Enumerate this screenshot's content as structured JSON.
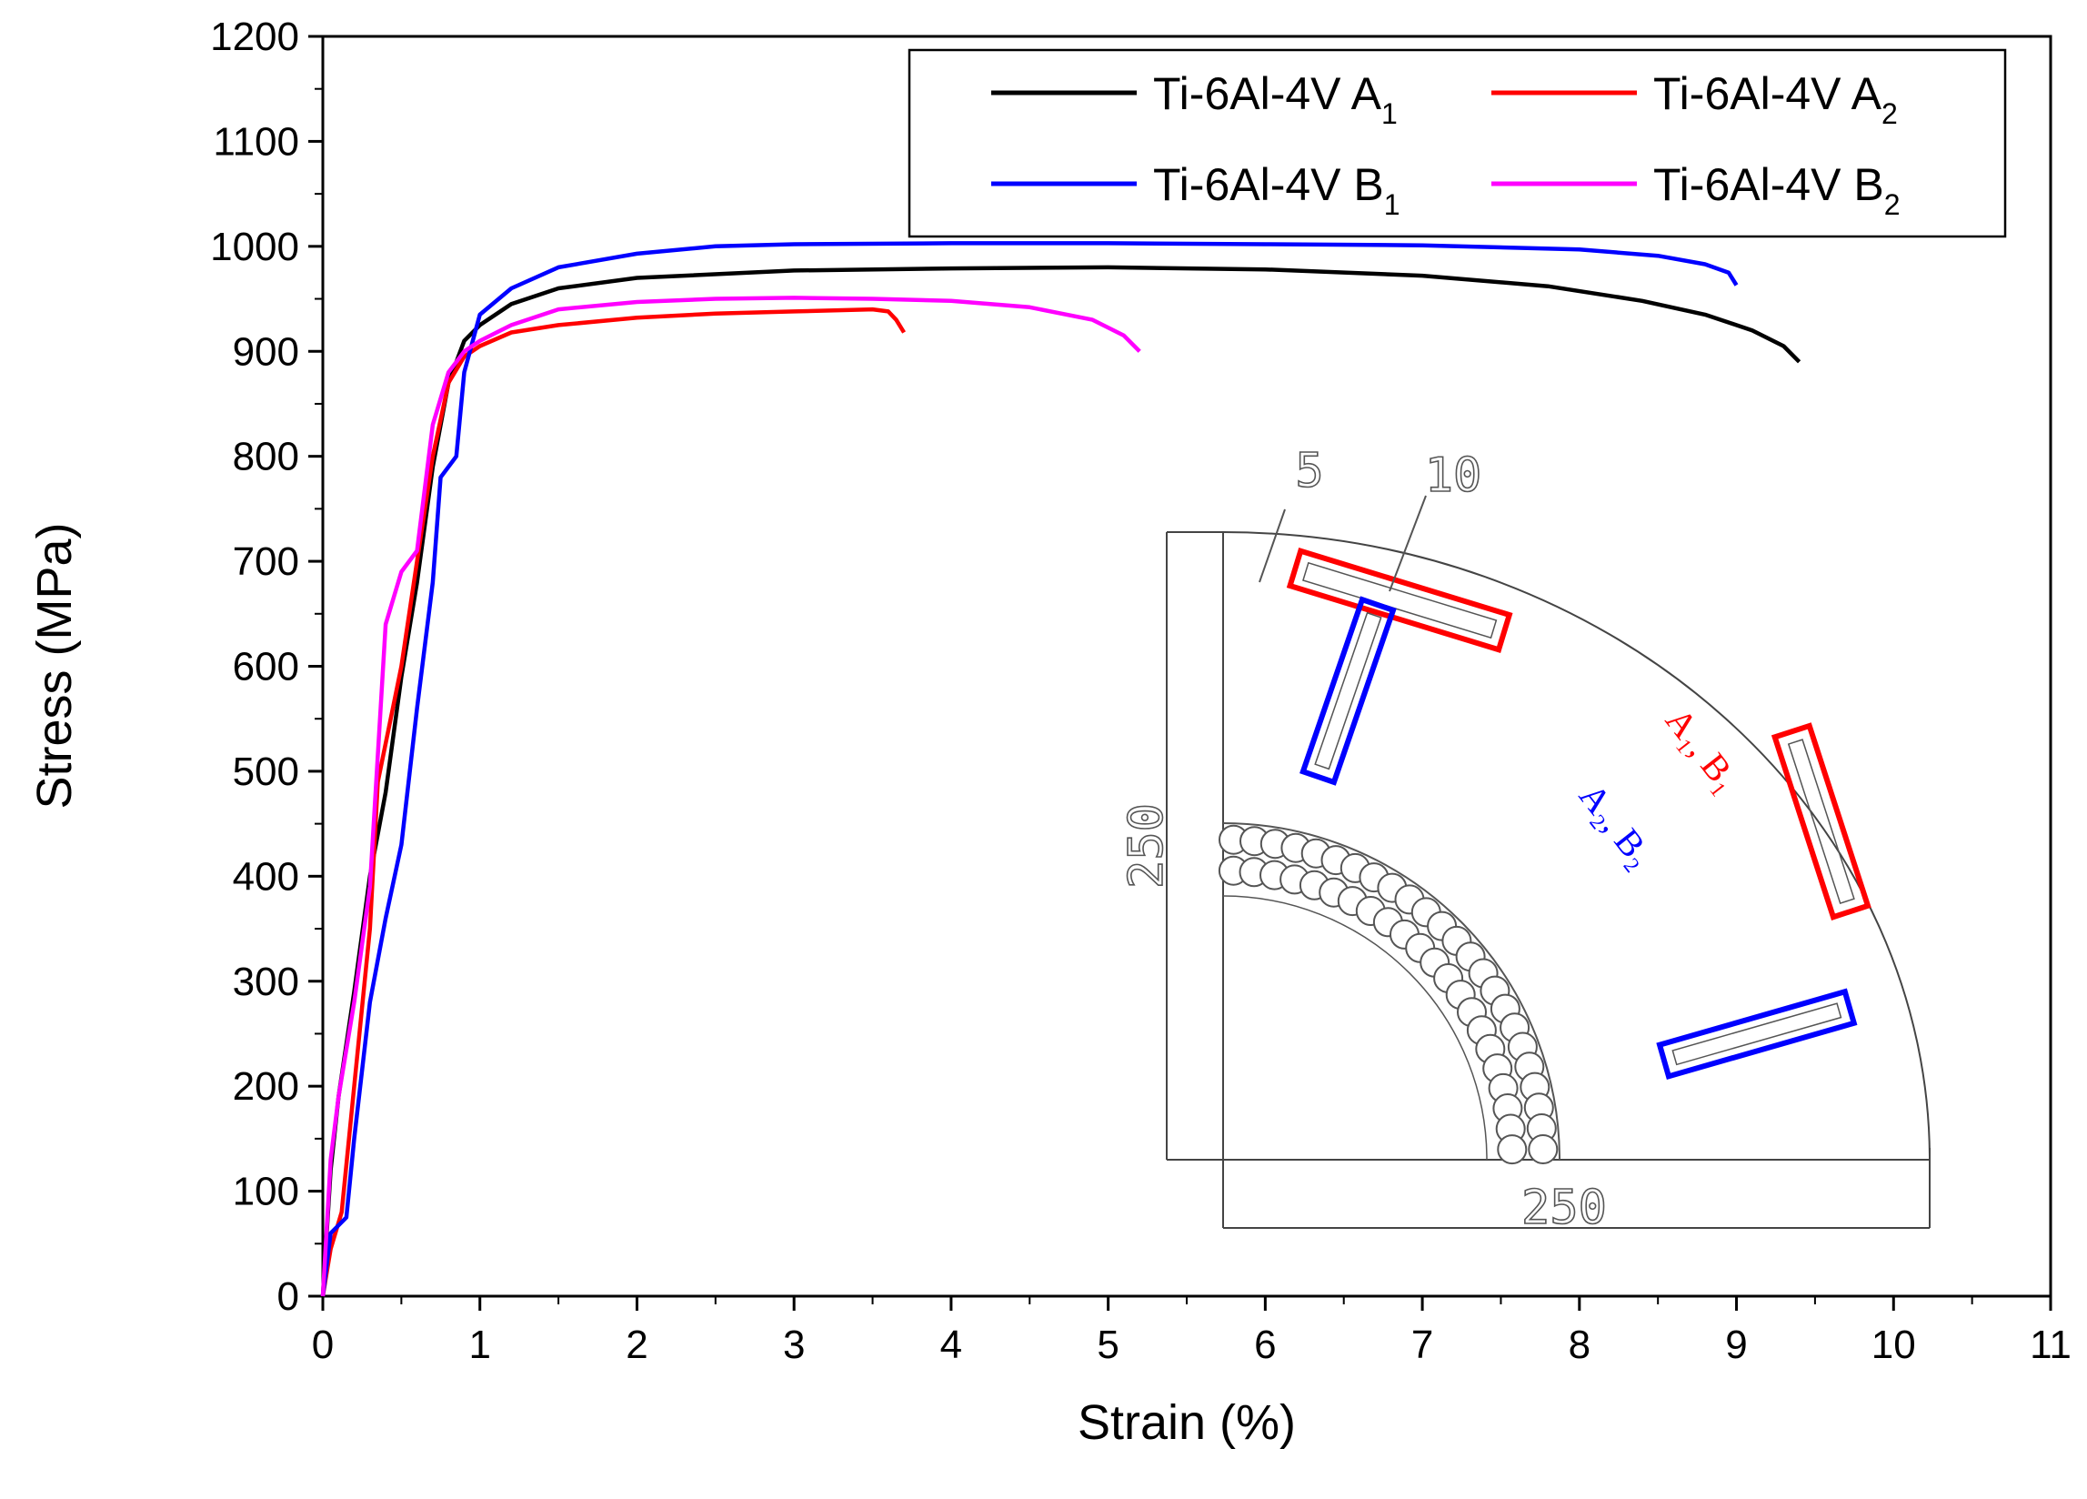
{
  "chart_data": {
    "type": "line",
    "xlabel": "Strain (%)",
    "ylabel": "Stress (MPa)",
    "xlim": [
      0,
      11
    ],
    "ylim": [
      0,
      1200
    ],
    "xticks": [
      0,
      1,
      2,
      3,
      4,
      5,
      6,
      7,
      8,
      9,
      10,
      11
    ],
    "yticks": [
      0,
      100,
      200,
      300,
      400,
      500,
      600,
      700,
      800,
      900,
      1000,
      1100,
      1200
    ],
    "legend_location": "top-right",
    "series": [
      {
        "name": "Ti-6Al-4V A1",
        "legend_base": "Ti-6Al-4V A",
        "legend_sub": "1",
        "color": "#000000",
        "points": [
          [
            0,
            0
          ],
          [
            0.05,
            120
          ],
          [
            0.1,
            190
          ],
          [
            0.2,
            290
          ],
          [
            0.3,
            400
          ],
          [
            0.4,
            480
          ],
          [
            0.5,
            590
          ],
          [
            0.6,
            680
          ],
          [
            0.7,
            790
          ],
          [
            0.8,
            870
          ],
          [
            0.9,
            910
          ],
          [
            1.0,
            925
          ],
          [
            1.2,
            945
          ],
          [
            1.5,
            960
          ],
          [
            2.0,
            970
          ],
          [
            3.0,
            977
          ],
          [
            4.0,
            979
          ],
          [
            5.0,
            980
          ],
          [
            6.0,
            978
          ],
          [
            7.0,
            972
          ],
          [
            7.8,
            962
          ],
          [
            8.4,
            948
          ],
          [
            8.8,
            935
          ],
          [
            9.1,
            920
          ],
          [
            9.3,
            905
          ],
          [
            9.4,
            890
          ]
        ]
      },
      {
        "name": "Ti-6Al-4V A2",
        "legend_base": "Ti-6Al-4V A",
        "legend_sub": "2",
        "color": "#ff0000",
        "points": [
          [
            0,
            0
          ],
          [
            0.05,
            45
          ],
          [
            0.12,
            80
          ],
          [
            0.2,
            200
          ],
          [
            0.3,
            350
          ],
          [
            0.35,
            490
          ],
          [
            0.5,
            600
          ],
          [
            0.6,
            700
          ],
          [
            0.7,
            800
          ],
          [
            0.8,
            870
          ],
          [
            0.9,
            895
          ],
          [
            1.0,
            905
          ],
          [
            1.2,
            918
          ],
          [
            1.5,
            925
          ],
          [
            2.0,
            932
          ],
          [
            2.5,
            936
          ],
          [
            3.0,
            938
          ],
          [
            3.5,
            940
          ],
          [
            3.6,
            938
          ],
          [
            3.65,
            930
          ],
          [
            3.7,
            918
          ]
        ]
      },
      {
        "name": "Ti-6Al-4V B1",
        "legend_base": "Ti-6Al-4V B",
        "legend_sub": "1",
        "color": "#0000ff",
        "points": [
          [
            0,
            0
          ],
          [
            0.05,
            60
          ],
          [
            0.15,
            75
          ],
          [
            0.2,
            150
          ],
          [
            0.3,
            280
          ],
          [
            0.4,
            360
          ],
          [
            0.5,
            430
          ],
          [
            0.6,
            560
          ],
          [
            0.7,
            680
          ],
          [
            0.75,
            780
          ],
          [
            0.85,
            800
          ],
          [
            0.9,
            880
          ],
          [
            1.0,
            935
          ],
          [
            1.2,
            960
          ],
          [
            1.5,
            980
          ],
          [
            2.0,
            993
          ],
          [
            2.5,
            1000
          ],
          [
            3.0,
            1002
          ],
          [
            4.0,
            1003
          ],
          [
            5.0,
            1003
          ],
          [
            6.0,
            1002
          ],
          [
            7.0,
            1001
          ],
          [
            8.0,
            997
          ],
          [
            8.5,
            991
          ],
          [
            8.8,
            983
          ],
          [
            8.95,
            975
          ],
          [
            9.0,
            963
          ]
        ]
      },
      {
        "name": "Ti-6Al-4V B2",
        "legend_base": "Ti-6Al-4V B",
        "legend_sub": "2",
        "color": "#ff00ff",
        "points": [
          [
            0,
            0
          ],
          [
            0.05,
            130
          ],
          [
            0.1,
            190
          ],
          [
            0.2,
            280
          ],
          [
            0.3,
            390
          ],
          [
            0.4,
            640
          ],
          [
            0.5,
            690
          ],
          [
            0.6,
            710
          ],
          [
            0.7,
            830
          ],
          [
            0.8,
            880
          ],
          [
            0.9,
            900
          ],
          [
            1.0,
            910
          ],
          [
            1.2,
            925
          ],
          [
            1.5,
            940
          ],
          [
            2.0,
            947
          ],
          [
            2.5,
            950
          ],
          [
            3.0,
            951
          ],
          [
            3.5,
            950
          ],
          [
            4.0,
            948
          ],
          [
            4.5,
            942
          ],
          [
            4.9,
            930
          ],
          [
            5.1,
            915
          ],
          [
            5.2,
            900
          ]
        ]
      }
    ]
  },
  "inset": {
    "dim_width": "250",
    "dim_height": "250",
    "dim_small_5": "5",
    "dim_small_10": "10",
    "label_a1_b1": "A₁, B₁",
    "label_a2_b2": "A₂, B₂",
    "label_a1_b1_color": "#ff0000",
    "label_a2_b2_color": "#0000ff"
  }
}
